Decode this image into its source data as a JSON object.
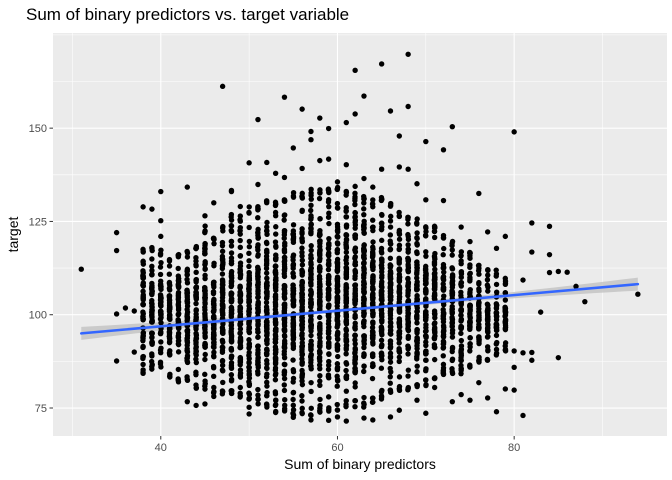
{
  "chart_data": {
    "type": "scatter",
    "title": "Sum of binary predictors vs. target variable",
    "xlabel": "Sum of binary predictors",
    "ylabel": "target",
    "xlim": [
      27.8,
      97.3
    ],
    "ylim": [
      67.5,
      175.5
    ],
    "x_ticks": [
      40,
      60,
      80
    ],
    "y_ticks": [
      75,
      100,
      125,
      150
    ],
    "grid": true,
    "legend": "none",
    "colors": {
      "panel_background": "#ebebeb",
      "grid": "#ffffff",
      "points": "#000000",
      "trend_line": "#3366ff",
      "confidence_band": "#c4c4c4",
      "tick_text": "#4d4d4d",
      "tick_marks": "#333333"
    },
    "trend_line": {
      "method": "lm",
      "x": [
        31,
        94
      ],
      "y": [
        95.0,
        108.2
      ],
      "se": true
    },
    "column_ranges": [
      {
        "x": 38,
        "y": [
          84,
          118
        ]
      },
      {
        "x": 39,
        "y": [
          85,
          119
        ]
      },
      {
        "x": 40,
        "y": [
          86,
          118
        ]
      },
      {
        "x": 41,
        "y": [
          83,
          115
        ]
      },
      {
        "x": 42,
        "y": [
          82,
          117
        ]
      },
      {
        "x": 43,
        "y": [
          82,
          117
        ]
      },
      {
        "x": 44,
        "y": [
          80,
          119
        ]
      },
      {
        "x": 45,
        "y": [
          80,
          124
        ]
      },
      {
        "x": 46,
        "y": [
          79,
          122
        ]
      },
      {
        "x": 47,
        "y": [
          78,
          124
        ]
      },
      {
        "x": 48,
        "y": [
          78,
          127
        ]
      },
      {
        "x": 49,
        "y": [
          77,
          127
        ]
      },
      {
        "x": 50,
        "y": [
          76,
          129
        ]
      },
      {
        "x": 51,
        "y": [
          76,
          130
        ]
      },
      {
        "x": 52,
        "y": [
          75,
          131
        ]
      },
      {
        "x": 53,
        "y": [
          74,
          131
        ]
      },
      {
        "x": 54,
        "y": [
          74,
          131
        ]
      },
      {
        "x": 55,
        "y": [
          73,
          133
        ]
      },
      {
        "x": 56,
        "y": [
          73,
          133
        ]
      },
      {
        "x": 57,
        "y": [
          73,
          134
        ]
      },
      {
        "x": 58,
        "y": [
          73,
          134
        ]
      },
      {
        "x": 59,
        "y": [
          74,
          134
        ]
      },
      {
        "x": 60,
        "y": [
          74,
          135
        ]
      },
      {
        "x": 61,
        "y": [
          75,
          134
        ]
      },
      {
        "x": 62,
        "y": [
          75,
          133
        ]
      },
      {
        "x": 63,
        "y": [
          75,
          133
        ]
      },
      {
        "x": 64,
        "y": [
          76,
          131
        ]
      },
      {
        "x": 65,
        "y": [
          77,
          132
        ]
      },
      {
        "x": 66,
        "y": [
          78,
          130
        ]
      },
      {
        "x": 67,
        "y": [
          79,
          128
        ]
      },
      {
        "x": 68,
        "y": [
          79,
          127
        ]
      },
      {
        "x": 69,
        "y": [
          80,
          126
        ]
      },
      {
        "x": 70,
        "y": [
          81,
          124
        ]
      },
      {
        "x": 71,
        "y": [
          82,
          125
        ]
      },
      {
        "x": 72,
        "y": [
          83,
          122
        ]
      },
      {
        "x": 73,
        "y": [
          84,
          120
        ]
      },
      {
        "x": 74,
        "y": [
          84,
          117
        ]
      },
      {
        "x": 75,
        "y": [
          85,
          117
        ]
      },
      {
        "x": 76,
        "y": [
          86,
          114
        ]
      },
      {
        "x": 77,
        "y": [
          87,
          113
        ]
      },
      {
        "x": 78,
        "y": [
          89,
          112
        ]
      },
      {
        "x": 79,
        "y": [
          90,
          110
        ]
      }
    ],
    "points": [
      [
        31,
        112.2
      ],
      [
        35,
        122
      ],
      [
        35,
        117.2
      ],
      [
        35,
        100.2
      ],
      [
        35,
        87.6
      ],
      [
        36,
        101.8
      ],
      [
        37,
        101
      ],
      [
        37,
        90
      ],
      [
        38,
        91.5
      ],
      [
        38,
        128.9
      ],
      [
        39,
        128.3
      ],
      [
        39,
        94
      ],
      [
        40,
        133
      ],
      [
        40,
        125.2
      ],
      [
        40,
        121
      ],
      [
        42,
        107.8
      ],
      [
        43,
        134.2
      ],
      [
        43,
        76.7
      ],
      [
        44,
        75.7
      ],
      [
        45,
        76.1
      ],
      [
        45,
        126.5
      ],
      [
        46,
        78.1
      ],
      [
        46,
        130
      ],
      [
        47,
        161.2
      ],
      [
        48,
        133.3
      ],
      [
        48,
        133
      ],
      [
        49,
        80.5
      ],
      [
        49,
        129
      ],
      [
        50,
        140.7
      ],
      [
        50,
        75.2
      ],
      [
        50,
        73.4
      ],
      [
        51,
        152.3
      ],
      [
        51,
        134.9
      ],
      [
        52,
        140.8
      ],
      [
        52,
        78.3
      ],
      [
        53,
        137.9
      ],
      [
        53,
        73.8
      ],
      [
        54,
        158.3
      ],
      [
        54,
        136.8
      ],
      [
        55,
        144.7
      ],
      [
        55,
        72.5
      ],
      [
        56,
        155.1
      ],
      [
        56,
        139.2
      ],
      [
        57,
        149.1
      ],
      [
        57,
        146.9
      ],
      [
        57,
        71.8
      ],
      [
        58,
        152.7
      ],
      [
        58,
        141.3
      ],
      [
        59,
        141.7
      ],
      [
        59,
        149.9
      ],
      [
        59,
        71.7
      ],
      [
        60,
        135.6
      ],
      [
        60,
        72.6
      ],
      [
        61,
        140.2
      ],
      [
        61,
        151.5
      ],
      [
        61,
        71.5
      ],
      [
        62,
        165.5
      ],
      [
        62,
        153.8
      ],
      [
        62,
        134.4
      ],
      [
        63,
        158.6
      ],
      [
        63,
        136.5
      ],
      [
        63,
        72.3
      ],
      [
        64,
        134.2
      ],
      [
        64,
        71.8
      ],
      [
        65,
        167.2
      ],
      [
        65,
        139
      ],
      [
        66,
        154.6
      ],
      [
        66,
        72.6
      ],
      [
        67,
        147.9
      ],
      [
        67,
        139.6
      ],
      [
        67,
        74.4
      ],
      [
        68,
        169.8
      ],
      [
        68,
        155.8
      ],
      [
        68,
        139
      ],
      [
        69,
        135.1
      ],
      [
        69,
        77.1
      ],
      [
        70,
        146.4
      ],
      [
        70,
        130.8
      ],
      [
        70,
        73.6
      ],
      [
        71,
        80.5
      ],
      [
        72,
        144.2
      ],
      [
        72,
        130.6
      ],
      [
        73,
        150.4
      ],
      [
        73,
        76.7
      ],
      [
        74,
        123.5
      ],
      [
        74,
        78.6
      ],
      [
        75,
        119.6
      ],
      [
        75,
        77.1
      ],
      [
        76,
        132.5
      ],
      [
        76,
        81.8
      ],
      [
        77,
        77.7
      ],
      [
        77,
        122.2
      ],
      [
        78,
        117.8
      ],
      [
        78,
        74
      ],
      [
        79,
        80.1
      ],
      [
        79,
        105.9
      ],
      [
        79,
        121
      ],
      [
        80,
        149
      ],
      [
        80,
        90.3
      ],
      [
        80,
        85.9
      ],
      [
        80,
        79.8
      ],
      [
        81,
        73
      ],
      [
        81,
        109.3
      ],
      [
        81,
        89.8
      ],
      [
        82,
        124.6
      ],
      [
        82,
        116.8
      ],
      [
        82,
        89.9
      ],
      [
        82,
        87.8
      ],
      [
        83,
        100.7
      ],
      [
        84,
        123.7
      ],
      [
        84,
        116.1
      ],
      [
        84,
        111.3
      ],
      [
        85,
        111.6
      ],
      [
        85,
        88.5
      ],
      [
        86,
        111.4
      ],
      [
        87,
        107.6
      ],
      [
        88,
        103.5
      ],
      [
        94,
        105.5
      ]
    ]
  }
}
